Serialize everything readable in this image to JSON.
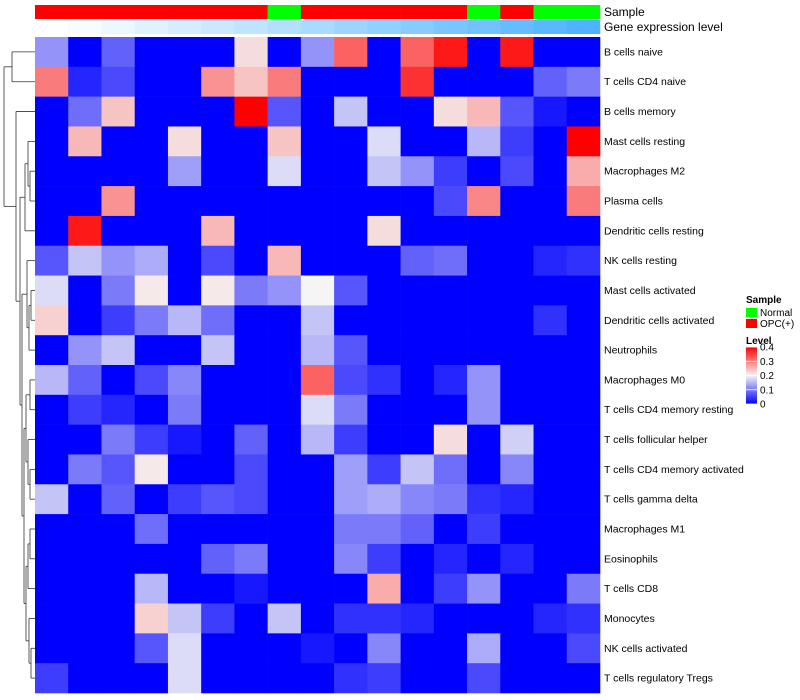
{
  "chart_data": {
    "type": "heatmap",
    "annotation_tracks": [
      "Sample",
      "Gene expression level"
    ],
    "sample_groups": [
      "OPC(+)",
      "OPC(+)",
      "OPC(+)",
      "OPC(+)",
      "OPC(+)",
      "OPC(+)",
      "OPC(+)",
      "Normal",
      "OPC(+)",
      "OPC(+)",
      "OPC(+)",
      "OPC(+)",
      "OPC(+)",
      "Normal",
      "OPC(+)",
      "Normal",
      "Normal"
    ],
    "gene_expression_level": [
      0.0,
      0.02,
      0.05,
      0.08,
      0.11,
      0.14,
      0.17,
      0.2,
      0.23,
      0.26,
      0.29,
      0.32,
      0.35,
      0.38,
      0.41,
      0.44,
      0.47
    ],
    "rows": [
      "B cells naive",
      "T cells CD4 naive",
      "B cells memory",
      "Mast cells resting",
      "Macrophages M2",
      "Plasma cells",
      "Dendritic cells resting",
      "NK cells resting",
      "Mast cells activated",
      "Dendritic cells activated",
      "Neutrophils",
      "Macrophages M0",
      "T cells CD4 memory resting",
      "T cells follicular helper",
      "T cells CD4 memory activated",
      "T cells gamma delta",
      "Macrophages M1",
      "Eosinophils",
      "T cells CD8",
      "Monocytes",
      "NK cells activated",
      "T cells regulatory  Tregs"
    ],
    "values": [
      [
        0.12,
        0.0,
        0.08,
        0.0,
        0.0,
        0.0,
        0.22,
        0.0,
        0.12,
        0.32,
        0.0,
        0.32,
        0.38,
        0.0,
        0.38,
        0.0,
        0.0
      ],
      [
        0.3,
        0.03,
        0.06,
        0.0,
        0.0,
        0.28,
        0.24,
        0.3,
        0.0,
        0.0,
        0.0,
        0.36,
        0.0,
        0.0,
        0.0,
        0.08,
        0.1
      ],
      [
        0.0,
        0.09,
        0.24,
        0.0,
        0.0,
        0.0,
        0.4,
        0.07,
        0.0,
        0.16,
        0.0,
        0.0,
        0.22,
        0.25,
        0.07,
        0.02,
        0.0
      ],
      [
        0.0,
        0.25,
        0.0,
        0.0,
        0.22,
        0.0,
        0.0,
        0.24,
        0.0,
        0.0,
        0.18,
        0.0,
        0.0,
        0.15,
        0.05,
        0.0,
        0.4
      ],
      [
        0.0,
        0.0,
        0.0,
        0.0,
        0.13,
        0.0,
        0.0,
        0.18,
        0.0,
        0.0,
        0.16,
        0.12,
        0.05,
        0.0,
        0.06,
        0.0,
        0.26
      ],
      [
        0.0,
        0.0,
        0.28,
        0.0,
        0.0,
        0.0,
        0.0,
        0.0,
        0.0,
        0.0,
        0.0,
        0.0,
        0.06,
        0.29,
        0.0,
        0.0,
        0.3
      ],
      [
        0.0,
        0.38,
        0.0,
        0.0,
        0.0,
        0.25,
        0.0,
        0.0,
        0.0,
        0.0,
        0.22,
        0.0,
        0.0,
        0.0,
        0.0,
        0.0,
        0.0
      ],
      [
        0.07,
        0.16,
        0.12,
        0.14,
        0.0,
        0.06,
        0.0,
        0.25,
        0.0,
        0.0,
        0.0,
        0.08,
        0.09,
        0.0,
        0.0,
        0.03,
        0.04
      ],
      [
        0.18,
        0.0,
        0.1,
        0.21,
        0.0,
        0.21,
        0.1,
        0.12,
        0.2,
        0.07,
        0.0,
        0.0,
        0.0,
        0.0,
        0.0,
        0.0,
        0.0
      ],
      [
        0.23,
        0.0,
        0.05,
        0.1,
        0.15,
        0.09,
        0.0,
        0.0,
        0.16,
        0.0,
        0.0,
        0.0,
        0.0,
        0.0,
        0.0,
        0.04,
        0.0
      ],
      [
        0.0,
        0.12,
        0.16,
        0.0,
        0.0,
        0.16,
        0.0,
        0.0,
        0.15,
        0.07,
        0.0,
        0.0,
        0.0,
        0.0,
        0.0,
        0.0,
        0.0
      ],
      [
        0.15,
        0.08,
        0.0,
        0.06,
        0.11,
        0.0,
        0.0,
        0.0,
        0.32,
        0.06,
        0.04,
        0.0,
        0.03,
        0.12,
        0.0,
        0.0,
        0.0
      ],
      [
        0.0,
        0.05,
        0.03,
        0.0,
        0.1,
        0.0,
        0.0,
        0.0,
        0.18,
        0.1,
        0.0,
        0.0,
        0.0,
        0.12,
        0.0,
        0.0,
        0.0
      ],
      [
        0.0,
        0.0,
        0.1,
        0.05,
        0.02,
        0.0,
        0.08,
        0.0,
        0.15,
        0.05,
        0.0,
        0.0,
        0.22,
        0.0,
        0.17,
        0.0,
        0.0
      ],
      [
        0.0,
        0.1,
        0.07,
        0.21,
        0.0,
        0.0,
        0.06,
        0.0,
        0.0,
        0.13,
        0.05,
        0.16,
        0.09,
        0.0,
        0.11,
        0.0,
        0.0
      ],
      [
        0.16,
        0.0,
        0.08,
        0.0,
        0.05,
        0.07,
        0.06,
        0.0,
        0.0,
        0.13,
        0.14,
        0.11,
        0.1,
        0.04,
        0.03,
        0.0,
        0.0
      ],
      [
        0.0,
        0.0,
        0.0,
        0.09,
        0.0,
        0.0,
        0.0,
        0.0,
        0.0,
        0.1,
        0.1,
        0.08,
        0.0,
        0.05,
        0.0,
        0.0,
        0.0
      ],
      [
        0.0,
        0.0,
        0.0,
        0.0,
        0.0,
        0.08,
        0.1,
        0.0,
        0.0,
        0.11,
        0.05,
        0.0,
        0.03,
        0.0,
        0.03,
        0.0,
        0.0
      ],
      [
        0.0,
        0.0,
        0.0,
        0.15,
        0.0,
        0.0,
        0.02,
        0.0,
        0.0,
        0.0,
        0.26,
        0.0,
        0.05,
        0.12,
        0.0,
        0.0,
        0.1
      ],
      [
        0.0,
        0.0,
        0.0,
        0.23,
        0.16,
        0.05,
        0.0,
        0.16,
        0.0,
        0.04,
        0.04,
        0.03,
        0.0,
        0.0,
        0.0,
        0.03,
        0.04
      ],
      [
        0.0,
        0.0,
        0.0,
        0.07,
        0.18,
        0.0,
        0.0,
        0.0,
        0.02,
        0.0,
        0.11,
        0.0,
        0.0,
        0.14,
        0.0,
        0.0,
        0.06
      ],
      [
        0.05,
        0.0,
        0.0,
        0.0,
        0.18,
        0.0,
        0.0,
        0.0,
        0.0,
        0.04,
        0.05,
        0.0,
        0.0,
        0.06,
        0.0,
        0.0,
        0.0
      ]
    ],
    "legend": {
      "sample_title": "Sample",
      "sample_entries": [
        {
          "label": "Normal",
          "color": "#00ff00"
        },
        {
          "label": "OPC(+)",
          "color": "#ff0000"
        }
      ],
      "level_title": "Level",
      "level_ticks": [
        "0.4",
        "0.3",
        "0.2",
        "0.1",
        "0"
      ],
      "level_range": [
        0,
        0.4
      ]
    },
    "colors": {
      "low": "#0000ff",
      "mid": "#f5f5f5",
      "high": "#ff0000",
      "expr_low": "#ffffff",
      "expr_high": "#4fb3ff"
    }
  }
}
